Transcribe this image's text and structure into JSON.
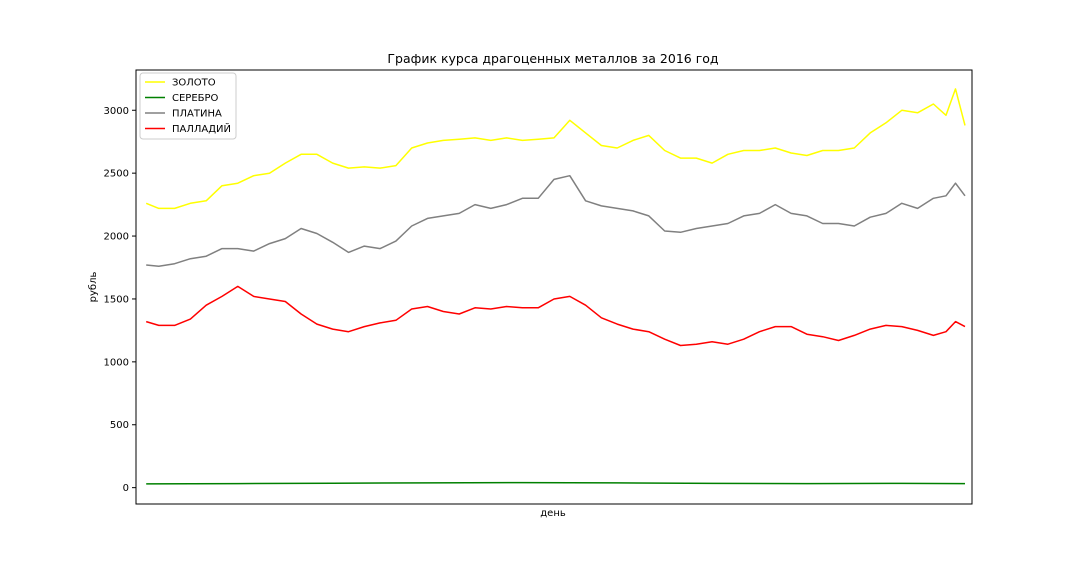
{
  "chart_data": {
    "type": "line",
    "title": "График курса драгоценных металлов за 2016 год",
    "xlabel": "день",
    "ylabel": "рубль",
    "ylim": [
      -130,
      3320
    ],
    "xlim": [
      0,
      260
    ],
    "yticks": [
      0,
      500,
      1000,
      1500,
      2000,
      2500,
      3000
    ],
    "grid": false,
    "legend_position": "top-left",
    "series": [
      {
        "name": "ЗОЛОТО",
        "color": "#ffff00",
        "x": [
          1,
          5,
          10,
          15,
          20,
          25,
          30,
          35,
          40,
          45,
          50,
          55,
          60,
          65,
          70,
          75,
          80,
          85,
          90,
          95,
          100,
          105,
          110,
          115,
          120,
          125,
          130,
          135,
          140,
          145,
          150,
          155,
          160,
          165,
          170,
          175,
          180,
          185,
          190,
          195,
          200,
          205,
          210,
          215,
          220,
          225,
          230,
          235,
          240,
          245,
          250,
          254,
          257,
          260
        ],
        "values": [
          2260,
          2220,
          2220,
          2260,
          2280,
          2400,
          2420,
          2480,
          2500,
          2580,
          2650,
          2650,
          2580,
          2540,
          2550,
          2540,
          2560,
          2700,
          2740,
          2760,
          2770,
          2780,
          2760,
          2780,
          2760,
          2770,
          2780,
          2920,
          2820,
          2720,
          2700,
          2760,
          2800,
          2680,
          2620,
          2620,
          2580,
          2650,
          2680,
          2680,
          2700,
          2660,
          2640,
          2680,
          2680,
          2700,
          2820,
          2900,
          3000,
          2980,
          3050,
          2960,
          3170,
          2880
        ]
      },
      {
        "name": "СЕРЕБРО",
        "color": "#008000",
        "x": [
          1,
          30,
          60,
          90,
          120,
          150,
          180,
          210,
          240,
          260
        ],
        "values": [
          30,
          32,
          35,
          38,
          40,
          38,
          34,
          32,
          34,
          32
        ]
      },
      {
        "name": "ПЛАТИНА",
        "color": "#808080",
        "x": [
          1,
          5,
          10,
          15,
          20,
          25,
          30,
          35,
          40,
          45,
          50,
          55,
          60,
          65,
          70,
          75,
          80,
          85,
          90,
          95,
          100,
          105,
          110,
          115,
          120,
          125,
          130,
          135,
          140,
          145,
          150,
          155,
          160,
          165,
          170,
          175,
          180,
          185,
          190,
          195,
          200,
          205,
          210,
          215,
          220,
          225,
          230,
          235,
          240,
          245,
          250,
          254,
          257,
          260
        ],
        "values": [
          1770,
          1760,
          1780,
          1820,
          1840,
          1900,
          1900,
          1880,
          1940,
          1980,
          2060,
          2020,
          1950,
          1870,
          1920,
          1900,
          1960,
          2080,
          2140,
          2160,
          2180,
          2250,
          2220,
          2250,
          2300,
          2300,
          2450,
          2480,
          2280,
          2240,
          2220,
          2200,
          2160,
          2040,
          2030,
          2060,
          2080,
          2100,
          2160,
          2180,
          2250,
          2180,
          2160,
          2100,
          2100,
          2080,
          2150,
          2180,
          2260,
          2220,
          2300,
          2320,
          2420,
          2320
        ]
      },
      {
        "name": "ПАЛЛАДИЙ",
        "color": "#ff0000",
        "x": [
          1,
          5,
          10,
          15,
          20,
          25,
          30,
          35,
          40,
          45,
          50,
          55,
          60,
          65,
          70,
          75,
          80,
          85,
          90,
          95,
          100,
          105,
          110,
          115,
          120,
          125,
          130,
          135,
          140,
          145,
          150,
          155,
          160,
          165,
          170,
          175,
          180,
          185,
          190,
          195,
          200,
          205,
          210,
          215,
          220,
          225,
          230,
          235,
          240,
          245,
          250,
          254,
          257,
          260
        ],
        "values": [
          1320,
          1290,
          1290,
          1340,
          1450,
          1520,
          1600,
          1520,
          1500,
          1480,
          1380,
          1300,
          1260,
          1240,
          1280,
          1310,
          1330,
          1420,
          1440,
          1400,
          1380,
          1430,
          1420,
          1440,
          1430,
          1430,
          1500,
          1520,
          1450,
          1350,
          1300,
          1260,
          1240,
          1180,
          1130,
          1140,
          1160,
          1140,
          1180,
          1240,
          1280,
          1280,
          1220,
          1200,
          1170,
          1210,
          1260,
          1290,
          1280,
          1250,
          1210,
          1240,
          1320,
          1280
        ]
      }
    ]
  }
}
